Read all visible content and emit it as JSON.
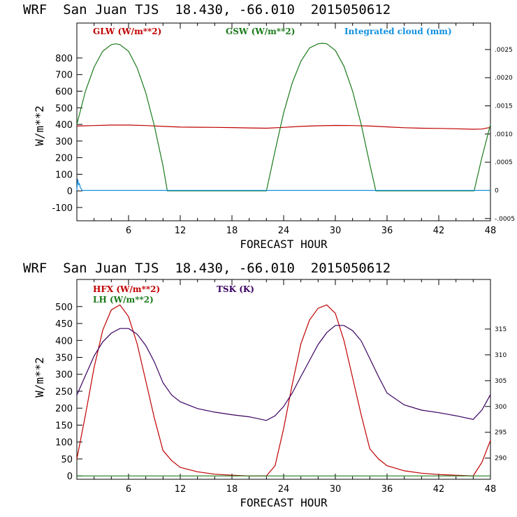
{
  "chart_data": [
    {
      "type": "line",
      "title": "WRF  San Juan TJS  18.430, -66.010  2015050612",
      "xlabel": "FORECAST HOUR",
      "ylabel": "W/m**2",
      "xlim": [
        0,
        48
      ],
      "ylim": [
        -180,
        1010
      ],
      "xticks": [
        "6",
        "12",
        "18",
        "24",
        "30",
        "36",
        "42",
        "48"
      ],
      "yticks": [
        "-100",
        "0",
        "100",
        "200",
        "300",
        "400",
        "500",
        "600",
        "700",
        "800"
      ],
      "right_axis": {
        "ylim": [
          -0.00054,
          0.00297
        ],
        "ticks": [
          ".0025",
          ".0020",
          ".0015",
          ".0010",
          ".0005",
          "0",
          "-.0005"
        ]
      },
      "grid": false,
      "series": [
        {
          "name": "GLW (W/m**2)",
          "color": "#c00000",
          "x": [
            0,
            2,
            4,
            6,
            8,
            10,
            12,
            14,
            16,
            18,
            20,
            22,
            24,
            26,
            28,
            30,
            32,
            34,
            36,
            38,
            40,
            42,
            44,
            46,
            47,
            48
          ],
          "y": [
            390,
            393,
            396,
            396,
            393,
            388,
            384,
            383,
            382,
            381,
            379,
            377,
            382,
            388,
            392,
            394,
            393,
            390,
            385,
            380,
            377,
            376,
            374,
            371,
            372,
            382
          ]
        },
        {
          "name": "GSW (W/m**2)",
          "color": "#1a7a1a",
          "x": [
            0,
            1,
            2,
            3,
            4,
            4.5,
            5,
            6,
            7,
            8,
            9,
            10,
            10.5,
            22,
            23,
            24,
            25,
            26,
            27,
            28,
            28.5,
            29,
            30,
            31,
            32,
            33,
            34,
            34.7,
            46.1,
            47,
            48
          ],
          "y": [
            400,
            600,
            745,
            840,
            880,
            885,
            880,
            840,
            740,
            590,
            390,
            150,
            0,
            0,
            240,
            470,
            650,
            780,
            860,
            885,
            888,
            885,
            845,
            750,
            600,
            400,
            160,
            0,
            0,
            200,
            400
          ]
        },
        {
          "name": "Integrated cloud (mm)",
          "color": "#1090e0",
          "axis": "right",
          "x": [
            0,
            0.1,
            0.2,
            0.3,
            0.4,
            0.5,
            0.6,
            0.8,
            48
          ],
          "y": [
            0,
            0.0002,
            0.0001,
            0.00012,
            5e-05,
            3e-05,
            0,
            0,
            0
          ]
        }
      ]
    },
    {
      "type": "line",
      "title": "WRF  San Juan TJS  18.430, -66.010  2015050612",
      "xlabel": "FORECAST HOUR",
      "ylabel": "W/m**2",
      "xlim": [
        0,
        48
      ],
      "ylim": [
        -10,
        580
      ],
      "xticks": [
        "6",
        "12",
        "18",
        "24",
        "30",
        "36",
        "42",
        "48"
      ],
      "yticks": [
        "0",
        "50",
        "100",
        "150",
        "200",
        "250",
        "300",
        "350",
        "400",
        "450",
        "500"
      ],
      "right_axis": {
        "ylim": [
          285.9,
          324.6
        ],
        "ticks": [
          "315",
          "310",
          "305",
          "300",
          "295",
          "290"
        ]
      },
      "grid": false,
      "series": [
        {
          "name": "HFX (W/m**2)",
          "color": "#c00000",
          "x": [
            0,
            1,
            2,
            3,
            4,
            5,
            6,
            7,
            8,
            9,
            10,
            11,
            12,
            14,
            16,
            18,
            20,
            22,
            23,
            24,
            25,
            26,
            27,
            28,
            29,
            30,
            31,
            32,
            33,
            34,
            35,
            36,
            38,
            40,
            42,
            44,
            46,
            47,
            48
          ],
          "y": [
            50,
            180,
            320,
            430,
            490,
            505,
            470,
            390,
            280,
            170,
            75,
            45,
            25,
            12,
            5,
            2,
            0,
            0,
            30,
            140,
            270,
            390,
            460,
            495,
            505,
            480,
            400,
            290,
            180,
            80,
            50,
            30,
            15,
            8,
            4,
            2,
            0,
            40,
            105
          ]
        },
        {
          "name": "LH (W/m**2)",
          "color": "#1a7a1a",
          "x": [
            0,
            48
          ],
          "y": [
            0,
            0
          ]
        },
        {
          "name": "TSK (K)",
          "color": "#3a0060",
          "axis": "right",
          "x": [
            0,
            1,
            2,
            3,
            4,
            5,
            6,
            7,
            8,
            9,
            10,
            11,
            12,
            14,
            16,
            18,
            20,
            22,
            23,
            24,
            25,
            26,
            27,
            28,
            29,
            30,
            31,
            32,
            33,
            34,
            35,
            36,
            38,
            40,
            42,
            44,
            46,
            47,
            48
          ],
          "y": [
            302.2,
            306.0,
            309.8,
            312.5,
            314.2,
            315.1,
            315.1,
            314.0,
            311.8,
            308.6,
            304.6,
            302.2,
            300.9,
            299.6,
            298.9,
            298.4,
            298.0,
            297.3,
            298.2,
            300.0,
            302.6,
            305.8,
            308.9,
            312.0,
            314.3,
            315.7,
            315.7,
            314.7,
            312.7,
            309.3,
            305.8,
            302.6,
            300.3,
            299.3,
            298.8,
            298.2,
            297.5,
            299.3,
            302.3
          ]
        }
      ]
    }
  ]
}
